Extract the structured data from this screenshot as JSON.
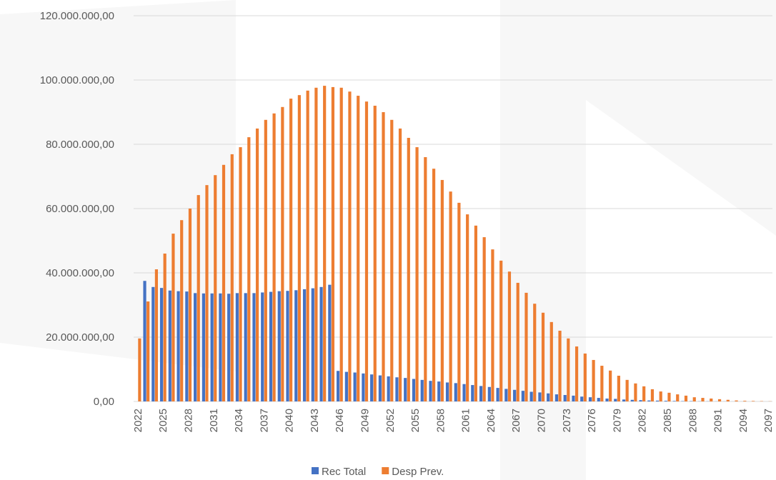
{
  "chart_data": {
    "type": "bar",
    "categories": [
      "2022",
      null,
      null,
      "2025",
      null,
      null,
      "2028",
      null,
      null,
      "2031",
      null,
      null,
      "2034",
      null,
      null,
      "2037",
      null,
      null,
      "2040",
      null,
      null,
      "2043",
      null,
      null,
      "2046",
      null,
      null,
      "2049",
      null,
      null,
      "2052",
      null,
      null,
      "2055",
      null,
      null,
      "2058",
      null,
      null,
      "2061",
      null,
      null,
      "2064",
      null,
      null,
      "2067",
      null,
      null,
      "2070",
      null,
      null,
      "2073",
      null,
      null,
      "2076",
      null,
      null,
      "2079",
      null,
      null,
      "2082",
      null,
      null,
      "2085",
      null,
      null,
      "2088",
      null,
      null,
      "2091",
      null,
      null,
      "2094",
      null,
      null,
      "2097"
    ],
    "series": [
      {
        "name": "Rec Total",
        "color": "#4472c4",
        "values": [
          0,
          37500000,
          35600000,
          35300000,
          34500000,
          34300000,
          34200000,
          33700000,
          33600000,
          33600000,
          33600000,
          33500000,
          33700000,
          33700000,
          33700000,
          33900000,
          34100000,
          34300000,
          34400000,
          34600000,
          34900000,
          35200000,
          35600000,
          36300000,
          9500000,
          9200000,
          9000000,
          8700000,
          8400000,
          8100000,
          7800000,
          7500000,
          7300000,
          7000000,
          6700000,
          6400000,
          6200000,
          5900000,
          5700000,
          5400000,
          5100000,
          4800000,
          4500000,
          4200000,
          3900000,
          3600000,
          3300000,
          3000000,
          2800000,
          2500000,
          2200000,
          2000000,
          1800000,
          1500000,
          1300000,
          1100000,
          900000,
          800000,
          600000,
          500000,
          400000,
          300000,
          250000,
          200000,
          150000,
          100000,
          100000,
          50000,
          50000,
          30000,
          20000,
          10000,
          10000,
          0,
          0,
          0
        ]
      },
      {
        "name": "Desp Prev.",
        "color": "#ed7d31",
        "values": [
          19600000,
          31100000,
          41100000,
          46000000,
          52200000,
          56400000,
          60000000,
          64200000,
          67300000,
          70400000,
          73600000,
          76900000,
          79100000,
          82200000,
          84900000,
          87600000,
          89600000,
          91600000,
          94200000,
          95300000,
          96700000,
          97600000,
          98200000,
          97800000,
          97600000,
          96400000,
          95100000,
          93300000,
          92000000,
          90000000,
          87600000,
          84900000,
          82000000,
          79100000,
          76000000,
          72400000,
          68900000,
          65300000,
          61800000,
          58200000,
          54700000,
          51100000,
          47300000,
          43800000,
          40400000,
          36900000,
          33800000,
          30400000,
          27600000,
          24700000,
          22000000,
          19600000,
          17100000,
          14900000,
          12900000,
          11100000,
          9600000,
          8000000,
          6700000,
          5600000,
          4700000,
          3800000,
          3100000,
          2700000,
          2200000,
          1800000,
          1300000,
          1100000,
          900000,
          700000,
          500000,
          300000,
          200000,
          150000,
          100000,
          50000
        ]
      }
    ],
    "ylim": [
      0,
      120000000
    ],
    "yticks": [
      {
        "value": 0,
        "label": "0,00"
      },
      {
        "value": 20000000,
        "label": "20.000.000,00"
      },
      {
        "value": 40000000,
        "label": "40.000.000,00"
      },
      {
        "value": 60000000,
        "label": "60.000.000,00"
      },
      {
        "value": 80000000,
        "label": "80.000.000,00"
      },
      {
        "value": 100000000,
        "label": "100.000.000,00"
      },
      {
        "value": 120000000,
        "label": "120.000.000,00"
      }
    ],
    "grid": true,
    "legend": "bottom"
  }
}
